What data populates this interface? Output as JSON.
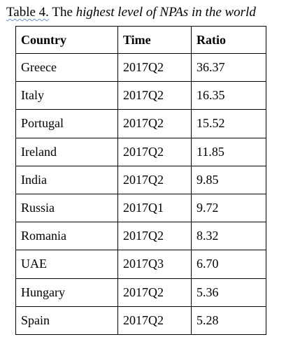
{
  "caption": {
    "label": "Table 4.",
    "plain": "The",
    "italic": "highest level of NPAs in the world"
  },
  "table": {
    "header": [
      "Country",
      "Time",
      "Ratio"
    ],
    "rows": [
      [
        "Greece",
        "2017Q2",
        "36.37"
      ],
      [
        "Italy",
        "2017Q2",
        "16.35"
      ],
      [
        "Portugal",
        "2017Q2",
        "15.52"
      ],
      [
        "Ireland",
        "2017Q2",
        "11.85"
      ],
      [
        "India",
        "2017Q2",
        "9.85"
      ],
      [
        "Russia",
        "2017Q1",
        "9.72"
      ],
      [
        "Romania",
        "2017Q2",
        "8.32"
      ],
      [
        "UAE",
        "2017Q3",
        "6.70"
      ],
      [
        "Hungary",
        "2017Q2",
        "5.36"
      ],
      [
        "Spain",
        "2017Q2",
        "5.28"
      ]
    ]
  }
}
